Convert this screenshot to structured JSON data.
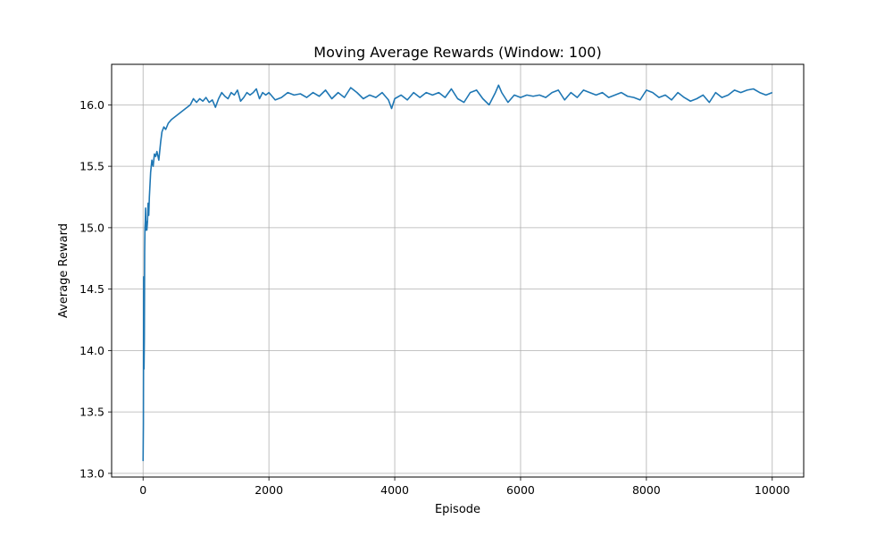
{
  "chart_data": {
    "type": "line",
    "title": "Moving Average Rewards (Window: 100)",
    "xlabel": "Episode",
    "ylabel": "Average Reward",
    "xlim": [
      -500,
      10500
    ],
    "ylim": [
      12.97,
      16.33
    ],
    "xticks": [
      0,
      2000,
      4000,
      6000,
      8000,
      10000
    ],
    "yticks": [
      13.0,
      13.5,
      14.0,
      14.5,
      15.0,
      15.5,
      16.0
    ],
    "grid": true,
    "color": "#1f77b4",
    "series": [
      {
        "name": "",
        "x": [
          0,
          5,
          10,
          15,
          20,
          25,
          30,
          35,
          40,
          45,
          50,
          55,
          60,
          70,
          80,
          90,
          100,
          120,
          140,
          160,
          180,
          200,
          220,
          250,
          280,
          300,
          330,
          360,
          400,
          450,
          500,
          550,
          600,
          650,
          700,
          750,
          800,
          850,
          900,
          950,
          1000,
          1050,
          1100,
          1150,
          1200,
          1250,
          1300,
          1350,
          1400,
          1450,
          1500,
          1550,
          1600,
          1650,
          1700,
          1750,
          1800,
          1850,
          1900,
          1950,
          2000,
          2100,
          2200,
          2300,
          2400,
          2500,
          2600,
          2700,
          2800,
          2900,
          3000,
          3100,
          3200,
          3300,
          3400,
          3500,
          3600,
          3700,
          3800,
          3900,
          3950,
          4000,
          4100,
          4200,
          4300,
          4400,
          4500,
          4600,
          4700,
          4800,
          4900,
          5000,
          5100,
          5200,
          5300,
          5400,
          5500,
          5600,
          5650,
          5700,
          5800,
          5900,
          6000,
          6100,
          6200,
          6300,
          6400,
          6500,
          6600,
          6700,
          6800,
          6900,
          7000,
          7100,
          7200,
          7300,
          7400,
          7500,
          7600,
          7700,
          7800,
          7900,
          8000,
          8100,
          8200,
          8300,
          8400,
          8500,
          8600,
          8700,
          8800,
          8900,
          9000,
          9100,
          9200,
          9300,
          9400,
          9500,
          9600,
          9700,
          9800,
          9900,
          10000
        ],
        "values": [
          13.1,
          13.4,
          14.6,
          13.85,
          14.1,
          14.8,
          15.0,
          15.05,
          15.16,
          14.98,
          15.05,
          15.0,
          14.98,
          15.05,
          15.2,
          15.1,
          15.25,
          15.45,
          15.55,
          15.5,
          15.6,
          15.58,
          15.62,
          15.55,
          15.7,
          15.78,
          15.82,
          15.8,
          15.85,
          15.88,
          15.9,
          15.92,
          15.94,
          15.96,
          15.98,
          16.0,
          16.05,
          16.02,
          16.05,
          16.03,
          16.06,
          16.02,
          16.04,
          15.98,
          16.05,
          16.1,
          16.07,
          16.05,
          16.1,
          16.08,
          16.12,
          16.03,
          16.06,
          16.1,
          16.08,
          16.1,
          16.13,
          16.05,
          16.1,
          16.08,
          16.1,
          16.04,
          16.06,
          16.1,
          16.08,
          16.09,
          16.06,
          16.1,
          16.07,
          16.12,
          16.05,
          16.1,
          16.06,
          16.14,
          16.1,
          16.05,
          16.08,
          16.06,
          16.1,
          16.04,
          15.97,
          16.05,
          16.08,
          16.04,
          16.1,
          16.06,
          16.1,
          16.08,
          16.1,
          16.06,
          16.13,
          16.05,
          16.02,
          16.1,
          16.12,
          16.05,
          16.0,
          16.1,
          16.16,
          16.1,
          16.02,
          16.08,
          16.06,
          16.08,
          16.07,
          16.08,
          16.06,
          16.1,
          16.12,
          16.04,
          16.1,
          16.06,
          16.12,
          16.1,
          16.08,
          16.1,
          16.06,
          16.08,
          16.1,
          16.07,
          16.06,
          16.04,
          16.12,
          16.1,
          16.06,
          16.08,
          16.04,
          16.1,
          16.06,
          16.03,
          16.05,
          16.08,
          16.02,
          16.1,
          16.06,
          16.08,
          16.12,
          16.1,
          16.12,
          16.13,
          16.1,
          16.08,
          16.1
        ]
      }
    ]
  }
}
